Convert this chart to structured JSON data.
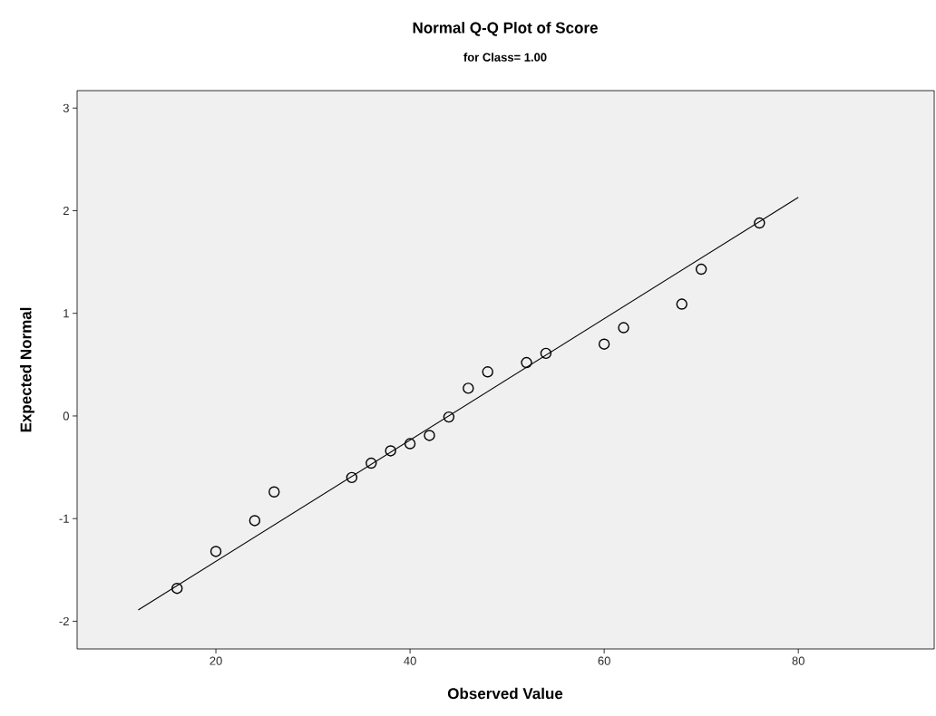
{
  "chart_data": {
    "type": "scatter",
    "title": "Normal Q-Q Plot of Score",
    "subtitle": "for Class= 1.00",
    "xlabel": "Observed Value",
    "ylabel": "Expected Normal",
    "xlim": [
      5.7,
      94
    ],
    "ylim": [
      -2.27,
      3.17
    ],
    "xticks": [
      20,
      40,
      60,
      80
    ],
    "yticks": [
      -2,
      -1,
      0,
      1,
      2,
      3
    ],
    "marker": "circle",
    "grid": false,
    "series": [
      {
        "color": "#000000",
        "x": [
          16,
          20,
          24,
          26,
          34,
          36,
          38,
          40,
          42,
          44,
          46,
          48,
          52,
          54,
          60,
          62,
          68,
          70,
          76
        ],
        "values": [
          -1.68,
          -1.32,
          -1.02,
          -0.74,
          -0.6,
          -0.46,
          -0.34,
          -0.27,
          -0.19,
          -0.01,
          0.27,
          0.43,
          0.52,
          0.61,
          0.7,
          0.86,
          1.09,
          1.43,
          1.88
        ]
      },
      {
        "type": "line",
        "marker": "none",
        "color": "#000000",
        "x": [
          12,
          80
        ],
        "values": [
          -1.89,
          2.13
        ]
      }
    ]
  }
}
